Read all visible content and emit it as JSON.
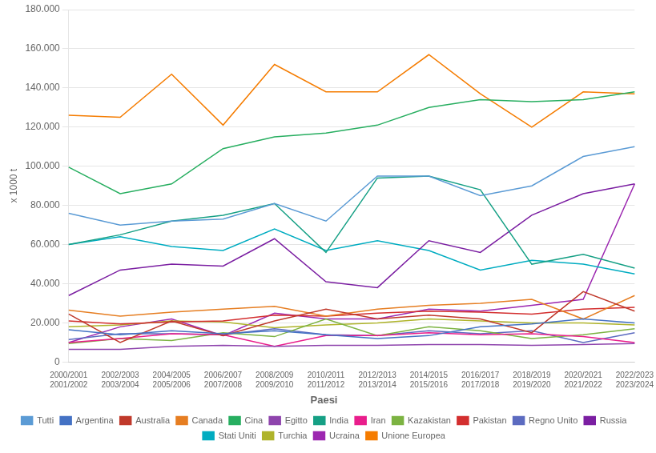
{
  "chart_data": {
    "type": "line",
    "categories": [
      "2000/2001\n2001/2002",
      "2002/2003\n2003/2004",
      "2004/2005\n2005/2006",
      "2006/2007\n2007/2008",
      "2008/2009\n2009/2010",
      "2010/2011\n2011/2012",
      "2012/2013\n2013/2014",
      "2014/2015\n2015/2016",
      "2016/2017\n2017/2018",
      "2018/2019\n2019/2020",
      "2020/2021\n2021/2022",
      "2022/2023\n2023/2024"
    ],
    "series": [
      {
        "name": "Tutti",
        "color": "#5b9bd5",
        "values": [
          76000,
          70000,
          72000,
          73000,
          81000,
          72000,
          95000,
          95000,
          85000,
          90000,
          105000,
          110000
        ]
      },
      {
        "name": "Argentina",
        "color": "#4472c4",
        "values": [
          16500,
          14000,
          16000,
          14500,
          16000,
          14000,
          12000,
          13500,
          18000,
          19500,
          22000,
          20000
        ]
      },
      {
        "name": "Australia",
        "color": "#c0392b",
        "values": [
          24500,
          10000,
          21000,
          13500,
          21000,
          27000,
          22000,
          24000,
          22000,
          15000,
          36000,
          26000
        ]
      },
      {
        "name": "Canada",
        "color": "#e67e22",
        "values": [
          26500,
          23500,
          25500,
          27000,
          28500,
          23500,
          27000,
          29000,
          30000,
          32000,
          22000,
          34000
        ]
      },
      {
        "name": "Cina",
        "color": "#27ae60",
        "values": [
          99500,
          86000,
          91000,
          109000,
          115000,
          117000,
          121000,
          130000,
          134000,
          133000,
          134000,
          138000
        ]
      },
      {
        "name": "Egitto",
        "color": "#8e44ad",
        "values": [
          6500,
          6500,
          8000,
          8500,
          8000,
          8500,
          8500,
          9000,
          9000,
          8500,
          9000,
          9500
        ]
      },
      {
        "name": "India",
        "color": "#16a085",
        "values": [
          60000,
          65000,
          72000,
          75000,
          81000,
          56000,
          94000,
          95000,
          88000,
          50000,
          55000,
          48000
        ]
      },
      {
        "name": "Iran",
        "color": "#e91e8c",
        "values": [
          10000,
          12000,
          14500,
          14000,
          8000,
          13500,
          13500,
          15000,
          14000,
          14500,
          13000,
          10000
        ]
      },
      {
        "name": "Kazakistan",
        "color": "#7cb342",
        "values": [
          9500,
          12000,
          11000,
          15000,
          13000,
          22000,
          13500,
          18000,
          16000,
          12000,
          14000,
          17000
        ]
      },
      {
        "name": "Pakistan",
        "color": "#d32f2f",
        "values": [
          21000,
          19500,
          20500,
          21000,
          24000,
          23500,
          25000,
          26000,
          25500,
          24500,
          27000,
          28000
        ]
      },
      {
        "name": "Regno Unito",
        "color": "#5c6bc0",
        "values": [
          11500,
          14500,
          14500,
          14000,
          17000,
          14000,
          13500,
          16000,
          14500,
          16000,
          10000,
          15000
        ]
      },
      {
        "name": "Russia",
        "color": "#7b1fa2",
        "values": [
          34000,
          47000,
          50000,
          49000,
          63000,
          41000,
          38000,
          62000,
          56000,
          75000,
          86000,
          91000
        ]
      },
      {
        "name": "Stati Uniti",
        "color": "#00acc1",
        "values": [
          60000,
          64000,
          59000,
          57000,
          68000,
          57000,
          62000,
          57000,
          47000,
          52000,
          50000,
          45000
        ]
      },
      {
        "name": "Turchia",
        "color": "#afb42b",
        "values": [
          18000,
          19000,
          21000,
          20500,
          17500,
          19000,
          20000,
          22000,
          21000,
          20000,
          20000,
          19000
        ]
      },
      {
        "name": "Ucraina",
        "color": "#9c27b0",
        "values": [
          10000,
          18000,
          22000,
          13500,
          25000,
          22000,
          22000,
          27000,
          26000,
          29000,
          32000,
          91000
        ]
      },
      {
        "name": "Unione Europea",
        "color": "#f57c00",
        "values": [
          126000,
          125000,
          147000,
          121000,
          152000,
          138000,
          138000,
          157000,
          137000,
          120000,
          138000,
          137000
        ]
      }
    ],
    "ylabel": "x 1000 t",
    "ylim": [
      0,
      180000
    ],
    "yticks": [
      0,
      {
        "value": 20000,
        "label": "20.000"
      },
      {
        "value": 40000,
        "label": "40.000"
      },
      {
        "value": 60000,
        "label": "60.000"
      },
      {
        "value": 80000,
        "label": "80.000"
      },
      {
        "value": 100000,
        "label": "100.000"
      },
      {
        "value": 120000,
        "label": "120.000"
      },
      {
        "value": 140000,
        "label": "140.000"
      },
      {
        "value": 160000,
        "label": "160.000"
      },
      {
        "value": 180000,
        "label": "180.000"
      }
    ],
    "grid": true,
    "legend": "bottom",
    "legend_title": "Paesi"
  }
}
